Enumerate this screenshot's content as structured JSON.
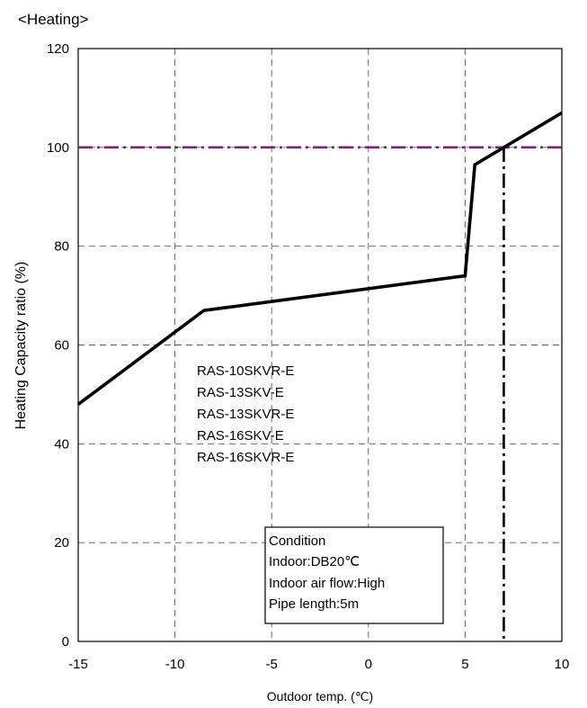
{
  "chart_data": {
    "type": "line",
    "title": "<Heating>",
    "xlabel": "Outdoor temp. (℃)",
    "ylabel": "Heating Capacity ratio (%)",
    "xlim": [
      -15,
      10
    ],
    "ylim": [
      0,
      120
    ],
    "xticks": [
      -15,
      -10,
      -5,
      0,
      5,
      10
    ],
    "yticks": [
      0,
      20,
      40,
      60,
      80,
      100,
      120
    ],
    "grid": true,
    "legend": "none",
    "series": [
      {
        "color": "#000000",
        "points": [
          [
            -15,
            48
          ],
          [
            -8.5,
            67
          ],
          [
            5,
            74
          ],
          [
            5.5,
            96.5
          ],
          [
            10,
            107
          ]
        ]
      }
    ],
    "reference_lines": [
      {
        "axis": "y",
        "value": 100,
        "color": "#7b1f7b",
        "style": "dash-dot"
      },
      {
        "axis": "x",
        "value": 7,
        "y_range": [
          0,
          100
        ],
        "color": "#000000",
        "style": "dash-dot"
      }
    ],
    "models": [
      "RAS-10SKVR-E",
      "RAS-13SKV-E",
      "RAS-13SKVR-E",
      "RAS-16SKV-E",
      "RAS-16SKVR-E"
    ],
    "condition": [
      "Condition",
      "Indoor:DB20℃",
      "Indoor air flow:High",
      "Pipe length:5m"
    ]
  }
}
